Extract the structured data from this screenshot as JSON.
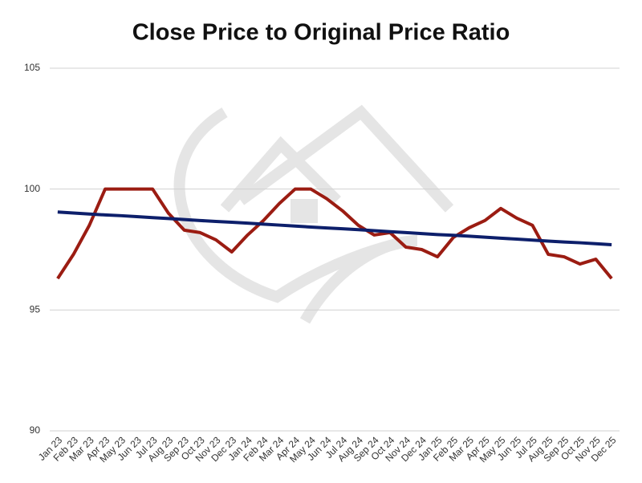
{
  "chart_data": {
    "type": "line",
    "title": "Close Price to Original Price Ratio",
    "categories": [
      "Jan 23",
      "Feb 23",
      "Mar 23",
      "Apr 23",
      "May 23",
      "Jun 23",
      "Jul 23",
      "Aug 23",
      "Sep 23",
      "Oct 23",
      "Nov 23",
      "Dec 23",
      "Jan 24",
      "Feb 24",
      "Mar 24",
      "Apr 24",
      "May 24",
      "Jun 24",
      "Jul 24",
      "Aug 24",
      "Sep 24",
      "Oct 24",
      "Nov 24",
      "Dec 24",
      "Jan 25",
      "Feb 25",
      "Mar 25",
      "Apr 25",
      "May 25",
      "Jun 25",
      "Jul 25",
      "Aug 25",
      "Sep 25",
      "Oct 25",
      "Nov 25",
      "Dec 25"
    ],
    "series": [
      {
        "color": "#9b1c12",
        "values": [
          96.3,
          97.3,
          98.5,
          100,
          100,
          100,
          100,
          99,
          98.3,
          98.2,
          97.9,
          97.4,
          98.1,
          98.7,
          99.4,
          100,
          100,
          99.6,
          99.1,
          98.5,
          98.1,
          98.2,
          97.6,
          97.5,
          97.2,
          98.0,
          98.4,
          98.7,
          99.2,
          98.8,
          98.5,
          97.3,
          97.2,
          96.9,
          97.1,
          96.3
        ]
      },
      {
        "color": "#0d1f6b",
        "values": [
          99.05,
          99.01,
          98.97,
          98.93,
          98.9,
          98.86,
          98.82,
          98.78,
          98.74,
          98.7,
          98.66,
          98.63,
          98.59,
          98.55,
          98.51,
          98.47,
          98.43,
          98.39,
          98.36,
          98.32,
          98.28,
          98.24,
          98.2,
          98.16,
          98.12,
          98.09,
          98.05,
          98.01,
          97.97,
          97.93,
          97.89,
          97.85,
          97.81,
          97.78,
          97.74,
          97.7
        ]
      }
    ],
    "ylim": [
      90,
      105
    ],
    "yticks": [
      90,
      95,
      100,
      105
    ],
    "grid": true
  }
}
